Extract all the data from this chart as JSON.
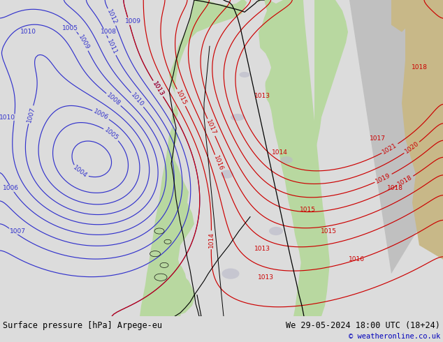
{
  "title_left": "Surface pressure [hPa] Arpege-eu",
  "title_right": "We 29-05-2024 18:00 UTC (18+24)",
  "copyright": "© weatheronline.co.uk",
  "bg_ocean": "#dcdcdc",
  "bg_land_green": "#b8d8a0",
  "bg_land_tan": "#c8b888",
  "bg_land_gray": "#b8b8b8",
  "blue": "#3333cc",
  "red": "#cc0000",
  "black": "#000000",
  "bottom_bar": "#c8c8c8",
  "figsize": [
    6.34,
    4.9
  ],
  "dpi": 100
}
